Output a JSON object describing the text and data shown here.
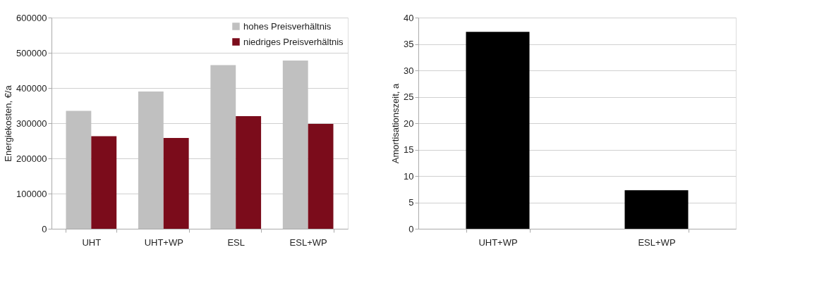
{
  "chart_data": [
    {
      "type": "bar",
      "ylabel": "Energiekosten, €/a",
      "categories": [
        "UHT",
        "UHT+WP",
        "ESL",
        "ESL+WP"
      ],
      "series": [
        {
          "name": "hohes Preisverhältnis",
          "color": "#c0c0c0",
          "values": [
            335000,
            390000,
            465000,
            478000
          ]
        },
        {
          "name": "niedriges Preisverhältnis",
          "color": "#7b0c1b",
          "values": [
            263000,
            258000,
            320000,
            298000
          ]
        }
      ],
      "ylim": [
        0,
        600000
      ],
      "yticks": [
        0,
        100000,
        200000,
        300000,
        400000,
        500000,
        600000
      ],
      "grid": "y",
      "legend": "top right"
    },
    {
      "type": "bar",
      "ylabel": "Amortisationszeit, a",
      "categories": [
        "UHT+WP",
        "ESL+WP"
      ],
      "series": [
        {
          "color": "#000000",
          "values": [
            37.3,
            7.3
          ]
        }
      ],
      "ylim": [
        0,
        40
      ],
      "yticks": [
        0,
        5,
        10,
        15,
        20,
        25,
        30,
        35,
        40
      ],
      "grid": "y"
    }
  ]
}
